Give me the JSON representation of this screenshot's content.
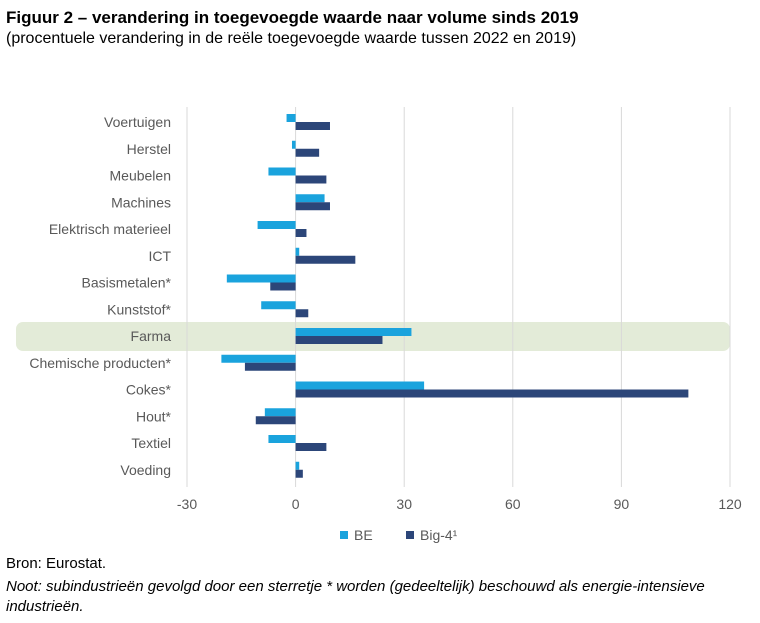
{
  "figure": {
    "title": "Figuur 2 – verandering in toegevoegde waarde naar volume sinds 2019",
    "subtitle": "(procentuele verandering in de reële toegevoegde waarde tussen 2022 en 2019)",
    "source": "Bron: Eurostat.",
    "note": "Noot: subindustrieën gevolgd door een sterretje * worden (gedeeltelijk) beschouwd als energie-intensieve industrieën."
  },
  "colors": {
    "be": "#1aa3dd",
    "big4": "#2c4679",
    "highlight": "#e3ebd8",
    "grid": "#d9d9d9",
    "axis_text": "#595959"
  },
  "chart_data": {
    "type": "bar",
    "orientation": "horizontal",
    "categories": [
      "Voertuigen",
      "Herstel",
      "Meubelen",
      "Machines",
      "Elektrisch materieel",
      "ICT",
      "Basismetalen*",
      "Kunststof*",
      "Farma",
      "Chemische producten*",
      "Cokes*",
      "Hout*",
      "Textiel",
      "Voeding"
    ],
    "series": [
      {
        "name": "BE",
        "values": [
          -2.5,
          -1,
          -7.5,
          8,
          -10.5,
          1,
          -19,
          -9.5,
          32,
          -20.5,
          35.5,
          -8.5,
          -7.5,
          1
        ]
      },
      {
        "name": "Big-4¹",
        "values": [
          9.5,
          6.5,
          8.5,
          9.5,
          3,
          16.5,
          -7,
          3.5,
          24,
          -14,
          108.5,
          -11,
          8.5,
          2
        ]
      }
    ],
    "highlighted_category": "Farma",
    "xlim": [
      -30,
      120
    ],
    "xticks": [
      -30,
      0,
      30,
      60,
      90,
      120
    ],
    "xlabel": "",
    "ylabel": "",
    "grid": true,
    "legend_position": "bottom-center"
  }
}
